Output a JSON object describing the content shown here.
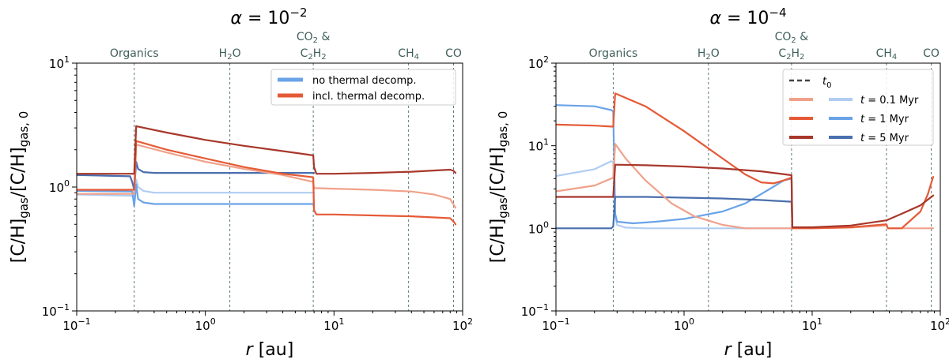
{
  "chart_data": [
    {
      "type": "line",
      "title": "α = 10⁻²",
      "title_parts": {
        "base": "α = 10",
        "exp": "−2"
      },
      "xlabel": "r [au]",
      "xlabel_parts": {
        "var": "r",
        "unit": " [au]"
      },
      "ylabel": "[C/H]gas/[C/H]gas, 0",
      "xscale": "log",
      "yscale": "log",
      "xlim": [
        0.1,
        100
      ],
      "ylim": [
        0.1,
        10
      ],
      "x_ticks": [
        {
          "v": 0.1,
          "base": "10",
          "exp": "−1"
        },
        {
          "v": 1,
          "base": "10",
          "exp": "0"
        },
        {
          "v": 10,
          "base": "10",
          "exp": "1"
        },
        {
          "v": 100,
          "base": "10",
          "exp": "2"
        }
      ],
      "y_ticks": [
        {
          "v": 0.1,
          "base": "10",
          "exp": "−1"
        },
        {
          "v": 1,
          "base": "10",
          "exp": "0"
        },
        {
          "v": 10,
          "base": "10",
          "exp": "1"
        }
      ],
      "snowlines": [
        {
          "x": 0.28,
          "lines": [
            [
              {
                "t": "Organics"
              }
            ]
          ]
        },
        {
          "x": 1.55,
          "lines": [
            [
              {
                "t": "H"
              },
              {
                "t": "2",
                "sub": true
              },
              {
                "t": "O"
              }
            ]
          ]
        },
        {
          "x": 6.9,
          "lines": [
            [
              {
                "t": "CO"
              },
              {
                "t": "2",
                "sub": true
              },
              {
                "t": " &"
              }
            ],
            [
              {
                "t": "C"
              },
              {
                "t": "2",
                "sub": true
              },
              {
                "t": "H"
              },
              {
                "t": "2",
                "sub": true
              }
            ]
          ]
        },
        {
          "x": 38,
          "lines": [
            [
              {
                "t": "CH"
              },
              {
                "t": "4",
                "sub": true
              }
            ]
          ]
        },
        {
          "x": 85,
          "lines": [
            [
              {
                "t": "CO"
              }
            ]
          ]
        }
      ],
      "legend": [
        {
          "label": "no thermal decomp.",
          "color": "#6aa3e8"
        },
        {
          "label": "incl. thermal decomp.",
          "color": "#e55a36"
        }
      ],
      "series": [
        {
          "name": "no decomp, t=0.1 Myr",
          "color": "#b0cdf2",
          "x": [
            0.1,
            0.27,
            0.28,
            0.29,
            0.3,
            0.33,
            0.4,
            6.9,
            7.0
          ],
          "y": [
            0.87,
            0.85,
            0.8,
            1.15,
            1.0,
            0.93,
            0.9,
            0.9,
            0.9
          ]
        },
        {
          "name": "no decomp, t=1 Myr",
          "color": "#6aa3e8",
          "x": [
            0.1,
            0.27,
            0.28,
            0.29,
            0.3,
            0.33,
            0.4,
            6.8,
            6.9,
            7.0
          ],
          "y": [
            0.93,
            0.92,
            0.7,
            1.05,
            0.8,
            0.75,
            0.73,
            0.73,
            0.72,
            0.72
          ]
        },
        {
          "name": "no decomp, t=5 Myr",
          "color": "#4a6fae",
          "x": [
            0.1,
            0.26,
            0.27,
            0.28,
            0.29,
            0.3,
            0.33,
            0.4,
            6.8,
            6.9,
            7.0
          ],
          "y": [
            1.25,
            1.22,
            1.1,
            0.95,
            1.6,
            1.4,
            1.32,
            1.3,
            1.3,
            1.3,
            1.3
          ]
        },
        {
          "name": "incl. decomp, t=0.1 Myr",
          "color": "#f0a18a",
          "x": [
            0.1,
            0.28,
            0.29,
            0.5,
            1,
            2,
            4,
            6.9,
            7.0,
            10,
            20,
            40,
            60,
            80,
            88
          ],
          "y": [
            0.88,
            0.88,
            2.2,
            1.9,
            1.6,
            1.4,
            1.25,
            1.1,
            0.98,
            0.97,
            0.95,
            0.92,
            0.87,
            0.8,
            0.68
          ]
        },
        {
          "name": "incl. decomp, t=1 Myr",
          "color": "#e55a36",
          "x": [
            0.1,
            0.28,
            0.29,
            0.5,
            1,
            2,
            4,
            6.9,
            7.0,
            7.3,
            10,
            20,
            40,
            80,
            86,
            88
          ],
          "y": [
            0.95,
            0.95,
            2.35,
            2.0,
            1.7,
            1.45,
            1.28,
            1.2,
            0.65,
            0.6,
            0.6,
            0.59,
            0.58,
            0.56,
            0.52,
            0.5
          ]
        },
        {
          "name": "incl. decomp, t=5 Myr",
          "color": "#a8372a",
          "x": [
            0.1,
            0.28,
            0.29,
            0.5,
            1,
            2,
            4,
            6.9,
            7.0,
            7.3,
            10,
            20,
            40,
            80,
            85,
            88
          ],
          "y": [
            1.28,
            1.28,
            3.1,
            2.75,
            2.4,
            2.15,
            1.95,
            1.8,
            1.45,
            1.28,
            1.28,
            1.3,
            1.33,
            1.38,
            1.35,
            1.3
          ]
        }
      ]
    },
    {
      "type": "line",
      "title": "α = 10⁻⁴",
      "title_parts": {
        "base": "α = 10",
        "exp": "−4"
      },
      "xlabel": "r [au]",
      "xlabel_parts": {
        "var": "r",
        "unit": " [au]"
      },
      "ylabel": "[C/H]gas/[C/H]gas, 0",
      "xscale": "log",
      "yscale": "log",
      "xlim": [
        0.1,
        100
      ],
      "ylim": [
        0.1,
        100
      ],
      "x_ticks": [
        {
          "v": 0.1,
          "base": "10",
          "exp": "−1"
        },
        {
          "v": 1,
          "base": "10",
          "exp": "0"
        },
        {
          "v": 10,
          "base": "10",
          "exp": "1"
        },
        {
          "v": 100,
          "base": "10",
          "exp": "2"
        }
      ],
      "y_ticks": [
        {
          "v": 0.1,
          "base": "10",
          "exp": "−1"
        },
        {
          "v": 1,
          "base": "10",
          "exp": "0"
        },
        {
          "v": 10,
          "base": "10",
          "exp": "1"
        },
        {
          "v": 100,
          "base": "10",
          "exp": "2"
        }
      ],
      "snowlines": [
        {
          "x": 0.28,
          "lines": [
            [
              {
                "t": "Organics"
              }
            ]
          ]
        },
        {
          "x": 1.55,
          "lines": [
            [
              {
                "t": "H"
              },
              {
                "t": "2",
                "sub": true
              },
              {
                "t": "O"
              }
            ]
          ]
        },
        {
          "x": 6.9,
          "lines": [
            [
              {
                "t": "CO"
              },
              {
                "t": "2",
                "sub": true
              },
              {
                "t": " &"
              }
            ],
            [
              {
                "t": "C"
              },
              {
                "t": "2",
                "sub": true
              },
              {
                "t": "H"
              },
              {
                "t": "2",
                "sub": true
              }
            ]
          ]
        },
        {
          "x": 38,
          "lines": [
            [
              {
                "t": "CH"
              },
              {
                "t": "4",
                "sub": true
              }
            ]
          ]
        },
        {
          "x": 85,
          "lines": [
            [
              {
                "t": "CO"
              }
            ]
          ]
        }
      ],
      "legend": [
        {
          "label": "t0",
          "label_parts": [
            {
              "t": "t",
              "italic": true
            },
            {
              "t": "0",
              "sub": true
            }
          ],
          "colors": [
            "#444444"
          ],
          "dashed": true
        },
        {
          "label": "t = 0.1 Myr",
          "label_parts": [
            {
              "t": "t",
              "italic": true
            },
            {
              "t": " = 0.1 Myr"
            }
          ],
          "colors": [
            "#f0a18a",
            "#b0cdf2"
          ]
        },
        {
          "label": "t = 1 Myr",
          "label_parts": [
            {
              "t": "t",
              "italic": true
            },
            {
              "t": " = 1 Myr"
            }
          ],
          "colors": [
            "#e55a36",
            "#6aa3e8"
          ]
        },
        {
          "label": "t = 5 Myr",
          "label_parts": [
            {
              "t": "t",
              "italic": true
            },
            {
              "t": " = 5 Myr"
            }
          ],
          "colors": [
            "#a8372a",
            "#4a6fae"
          ]
        }
      ],
      "series": [
        {
          "name": "no decomp, t=0.1 Myr",
          "color": "#b0cdf2",
          "x": [
            0.1,
            0.2,
            0.27,
            0.28,
            0.29,
            0.3,
            0.35,
            0.5,
            1,
            6.9,
            7.0
          ],
          "y": [
            4.3,
            5.2,
            6.5,
            6.3,
            1.4,
            1.1,
            1.02,
            1.0,
            1.0,
            1.0,
            1.0
          ]
        },
        {
          "name": "no decomp, t=1 Myr",
          "color": "#6aa3e8",
          "x": [
            0.1,
            0.2,
            0.27,
            0.28,
            0.29,
            0.3,
            0.4,
            0.6,
            1,
            2,
            3,
            4,
            5,
            6,
            6.9,
            7.0
          ],
          "y": [
            31,
            30,
            27,
            26,
            1.5,
            1.2,
            1.15,
            1.2,
            1.3,
            1.6,
            2.0,
            2.6,
            3.2,
            3.8,
            4.0,
            1.0
          ]
        },
        {
          "name": "no decomp, t=5 Myr",
          "color": "#4a6fae",
          "x": [
            0.1,
            0.27,
            0.28,
            0.29,
            0.35,
            0.5,
            1,
            2,
            4,
            6.9,
            7.0
          ],
          "y": [
            1.0,
            1.0,
            1.05,
            2.4,
            2.4,
            2.4,
            2.35,
            2.3,
            2.2,
            2.1,
            1.0
          ]
        },
        {
          "name": "incl. decomp, t=0.1 Myr",
          "color": "#f0a18a",
          "x": [
            0.1,
            0.2,
            0.28,
            0.29,
            0.35,
            0.5,
            0.8,
            1.2,
            2,
            3,
            6.9,
            7.0,
            10,
            20,
            38,
            39,
            50,
            70,
            85,
            88
          ],
          "y": [
            2.8,
            3.3,
            4.1,
            10.5,
            7,
            3.8,
            2.0,
            1.4,
            1.1,
            1.0,
            1.0,
            1.0,
            1.0,
            1.02,
            1.08,
            1.0,
            1.0,
            1.0,
            1.0,
            1.0
          ]
        },
        {
          "name": "incl. decomp, t=1 Myr",
          "color": "#e55a36",
          "x": [
            0.1,
            0.2,
            0.28,
            0.29,
            0.5,
            1,
            2,
            3,
            4,
            5,
            6,
            6.9,
            7.0,
            10,
            20,
            38,
            39,
            50,
            70,
            80,
            88
          ],
          "y": [
            18,
            17.5,
            17,
            43,
            30,
            15,
            7,
            4.5,
            3.6,
            3.5,
            3.8,
            4.1,
            1.0,
            1.0,
            1.03,
            1.12,
            1.0,
            1.0,
            1.6,
            2.6,
            4.2
          ]
        },
        {
          "name": "incl. decomp, t=5 Myr",
          "color": "#a8372a",
          "x": [
            0.1,
            0.2,
            0.28,
            0.29,
            0.5,
            1,
            2,
            4,
            6.9,
            7.0,
            10,
            20,
            38,
            50,
            70,
            88
          ],
          "y": [
            2.4,
            2.4,
            2.4,
            5.9,
            5.8,
            5.6,
            5.3,
            4.9,
            4.4,
            1.03,
            1.03,
            1.08,
            1.25,
            1.5,
            1.9,
            2.5
          ]
        }
      ]
    }
  ]
}
